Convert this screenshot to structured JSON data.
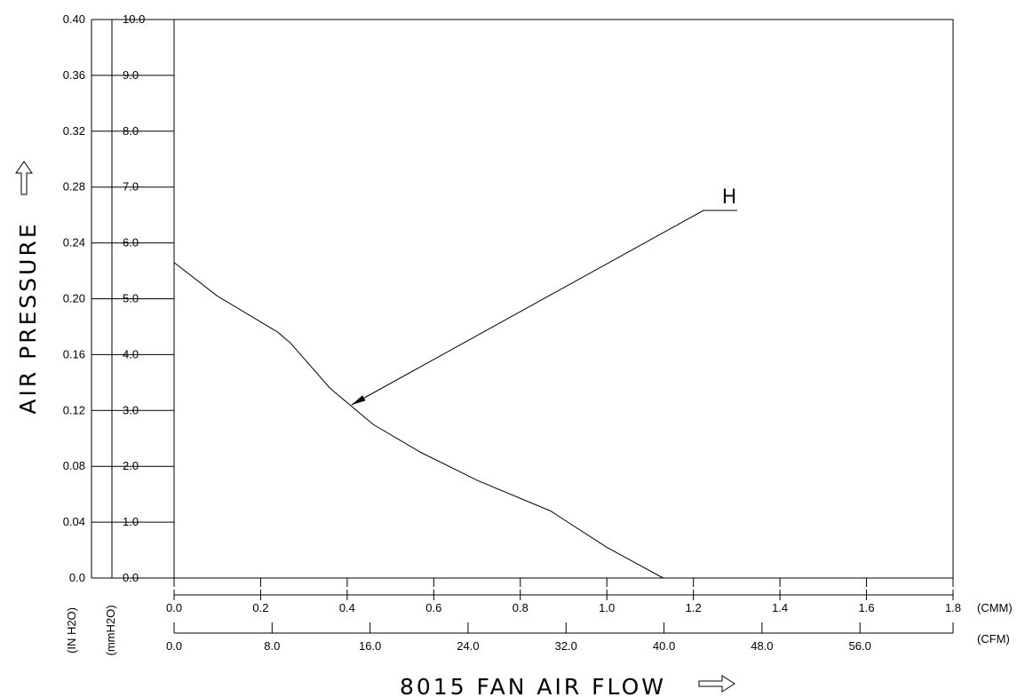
{
  "chart_data": {
    "type": "line",
    "title": "",
    "xlabel": "8015 FAN AIR FLOW",
    "ylabel": "AIR PRESSURE",
    "x_primary": {
      "unit": "(CMM)",
      "range": [
        0.0,
        1.8
      ],
      "ticks": [
        0.0,
        0.2,
        0.4,
        0.6,
        0.8,
        1.0,
        1.2,
        1.4,
        1.6,
        1.8
      ],
      "tick_labels": [
        "0.0",
        "0.2",
        "0.4",
        "0.6",
        "0.8",
        "1.0",
        "1.2",
        "1.4",
        "1.6",
        "1.8"
      ]
    },
    "x_secondary": {
      "unit": "(CFM)",
      "range": [
        0.0,
        63.6
      ],
      "ticks": [
        0.0,
        8.0,
        16.0,
        24.0,
        32.0,
        40.0,
        48.0,
        56.0
      ],
      "tick_labels": [
        "0.0",
        "8.0",
        "16.0",
        "24.0",
        "32.0",
        "40.0",
        "48.0",
        "56.0"
      ]
    },
    "y_primary": {
      "unit": "(mmH2O)",
      "range": [
        0.0,
        10.0
      ],
      "ticks": [
        0.0,
        1.0,
        2.0,
        3.0,
        4.0,
        5.0,
        6.0,
        7.0,
        8.0,
        9.0,
        10.0
      ],
      "tick_labels": [
        "0.0",
        "1.0",
        "2.0",
        "3.0",
        "4.0",
        "5.0",
        "6.0",
        "7.0",
        "8.0",
        "9.0",
        "10.0"
      ]
    },
    "y_secondary": {
      "unit": "(IN H2O)",
      "range": [
        0.0,
        0.4
      ],
      "ticks": [
        0.0,
        0.04,
        0.08,
        0.12,
        0.16,
        0.2,
        0.24,
        0.28,
        0.32,
        0.36,
        0.4
      ],
      "tick_labels": [
        "0.0",
        "0.04",
        "0.08",
        "0.12",
        "0.16",
        "0.20",
        "0.24",
        "0.28",
        "0.32",
        "0.36",
        "0.40"
      ]
    },
    "grid": false,
    "series": [
      {
        "label": "H",
        "x": [
          0.0,
          0.1,
          0.24,
          0.27,
          0.36,
          0.46,
          0.57,
          0.7,
          0.87,
          0.9,
          1.0,
          1.13
        ],
        "y": [
          5.65,
          5.05,
          4.4,
          4.2,
          3.4,
          2.75,
          2.25,
          1.75,
          1.2,
          1.05,
          0.55,
          0.0
        ]
      }
    ],
    "annotations": [
      {
        "text": "H",
        "points_to": {
          "x": 0.41,
          "y": 3.1
        }
      }
    ]
  }
}
